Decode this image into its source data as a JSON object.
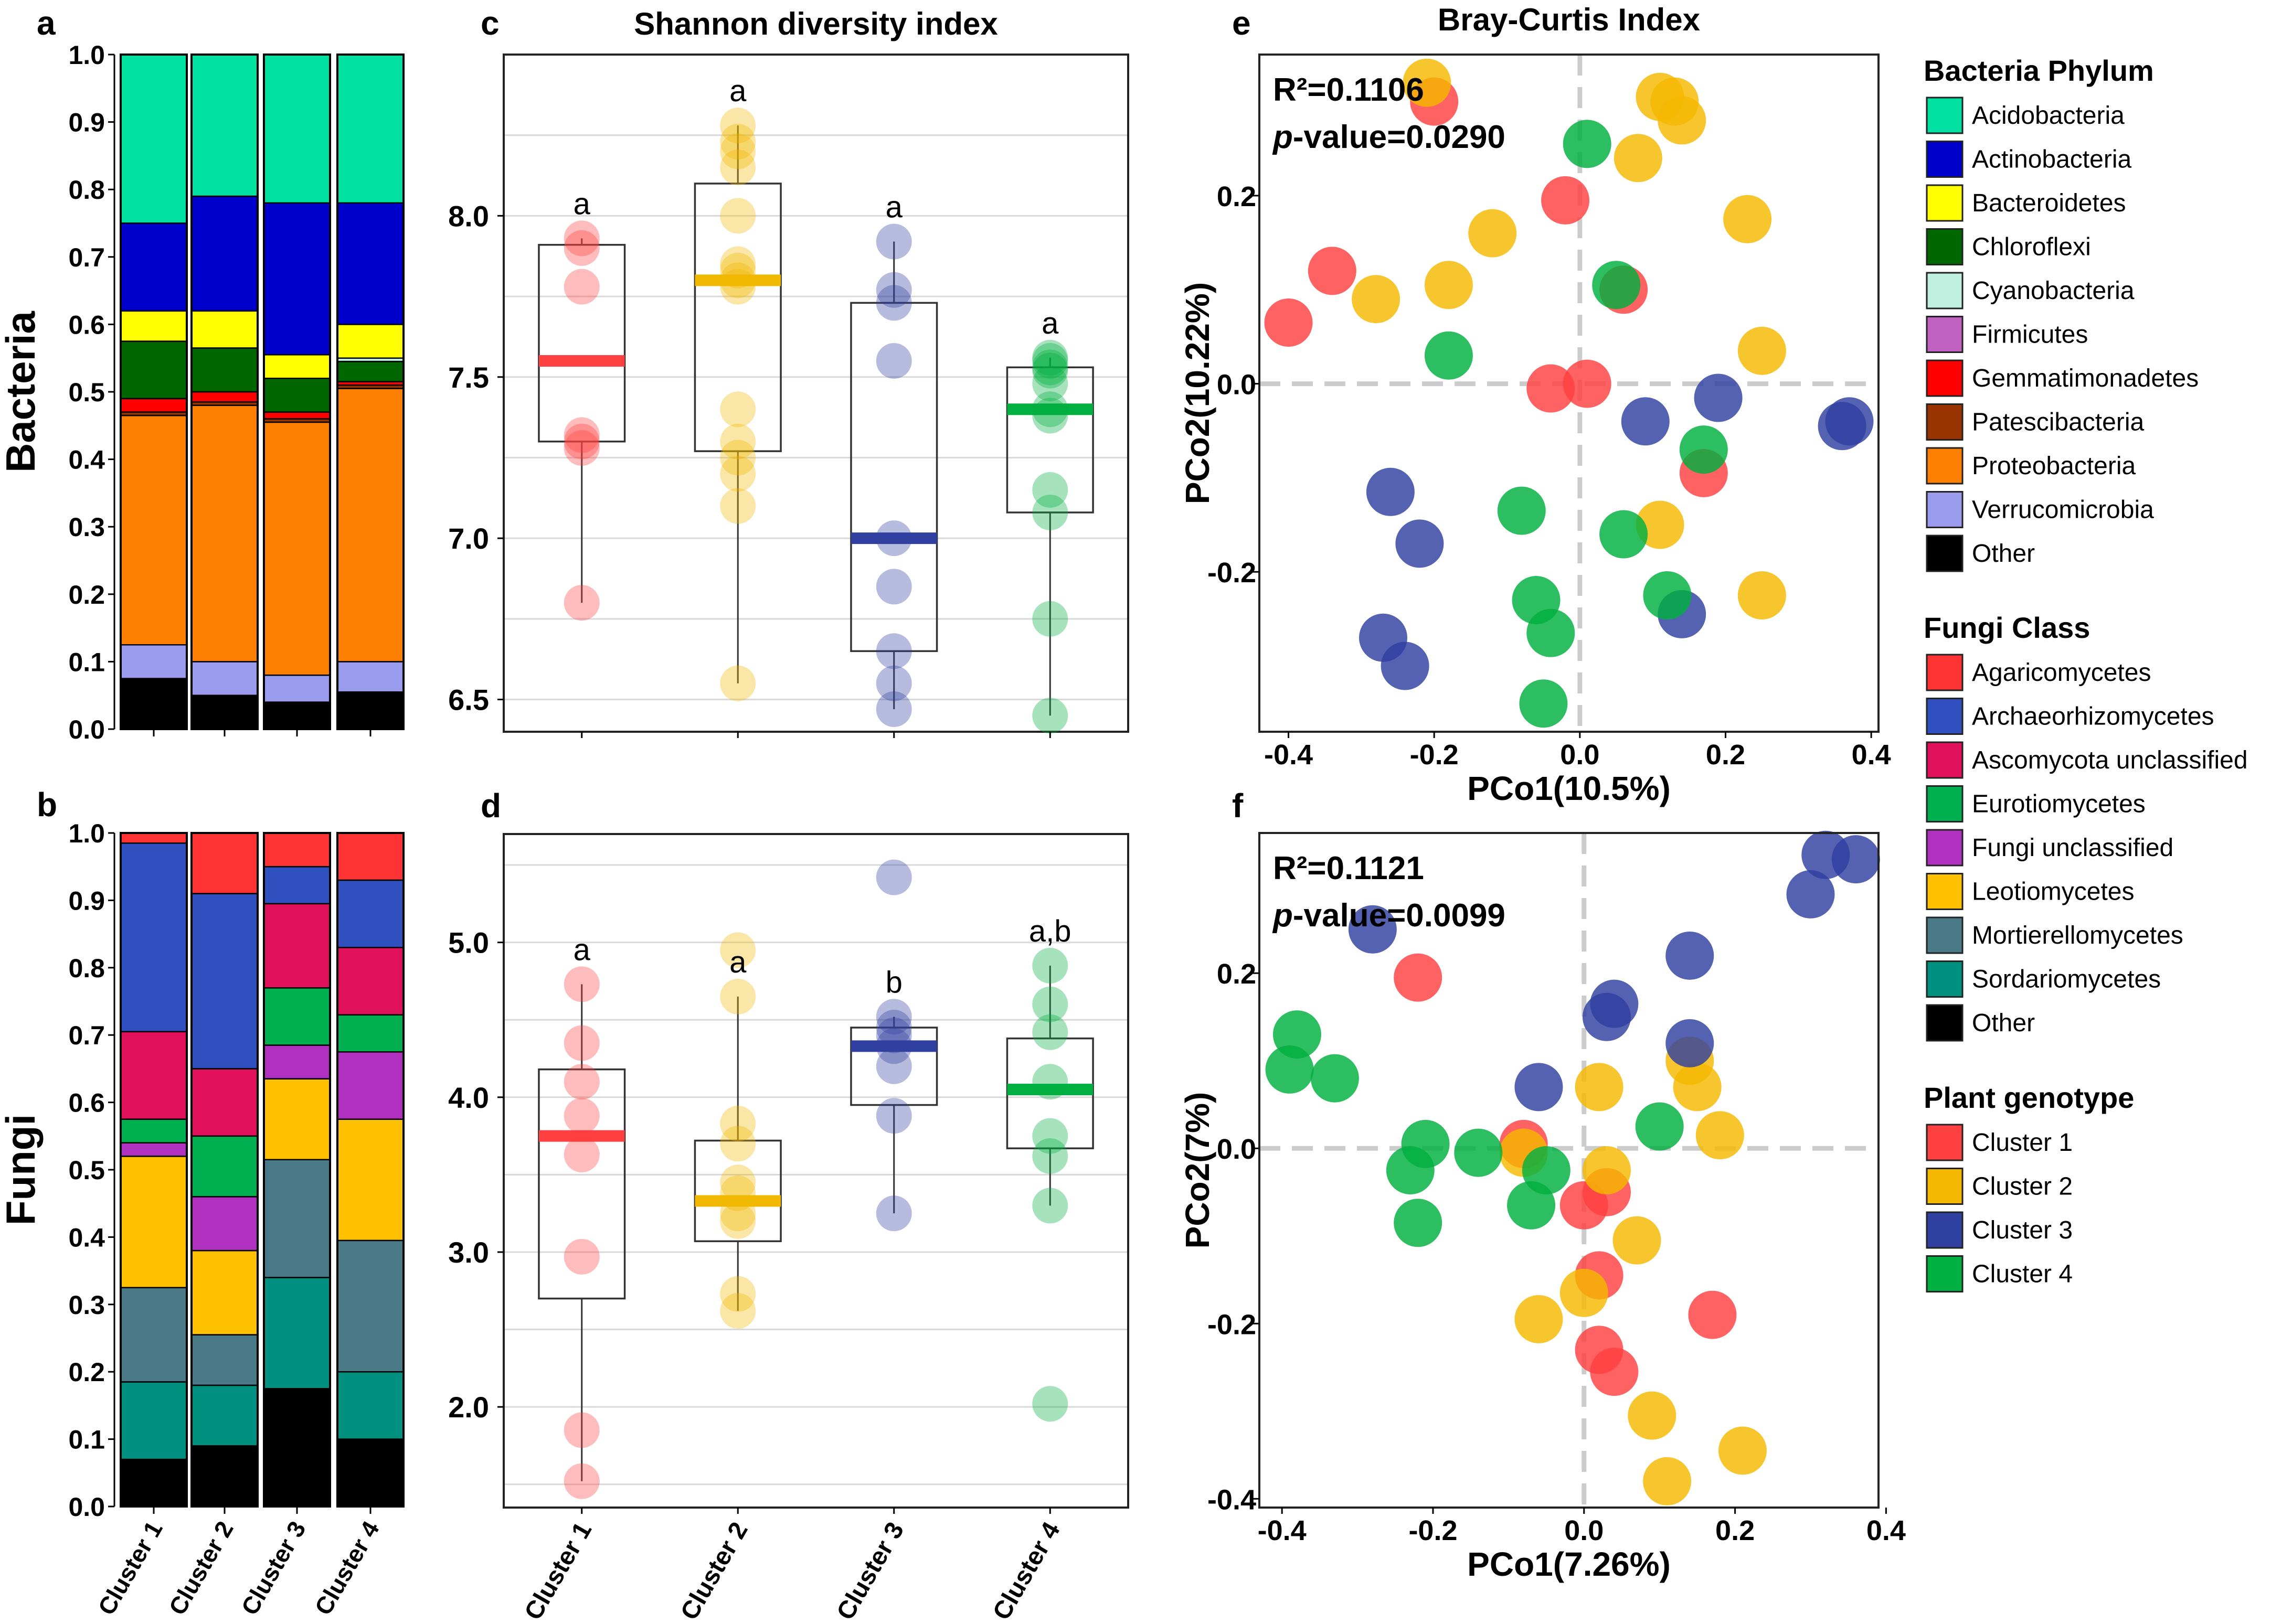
{
  "chart_data": [
    {
      "id": "a",
      "type": "bar",
      "stacked": true,
      "panel_label": "a",
      "ylabel": "Bacteria",
      "ylim": [
        0,
        1
      ],
      "ticks": [
        "0.0",
        "0.1",
        "0.2",
        "0.3",
        "0.4",
        "0.5",
        "0.6",
        "0.7",
        "0.8",
        "0.9",
        "1.0"
      ],
      "categories": [
        "Cluster 1",
        "Cluster 2",
        "Cluster 3",
        "Cluster 4"
      ],
      "series": [
        {
          "name": "Other",
          "color": "#000000",
          "values": [
            0.075,
            0.05,
            0.04,
            0.055
          ]
        },
        {
          "name": "Verrucomicrobia",
          "color": "#9B9BEE",
          "values": [
            0.05,
            0.05,
            0.04,
            0.045
          ]
        },
        {
          "name": "Proteobacteria",
          "color": "#FF8000",
          "values": [
            0.34,
            0.38,
            0.375,
            0.405
          ]
        },
        {
          "name": "Patescibacteria",
          "color": "#993300",
          "values": [
            0.005,
            0.005,
            0.005,
            0.005
          ]
        },
        {
          "name": "Gemmatimonadetes",
          "color": "#FF0000",
          "values": [
            0.02,
            0.015,
            0.01,
            0.005
          ]
        },
        {
          "name": "Chloroflexi",
          "color": "#006600",
          "values": [
            0.085,
            0.065,
            0.05,
            0.03
          ]
        },
        {
          "name": "Cyanobacteria",
          "color": "#BFF0E0",
          "values": [
            0,
            0,
            0,
            0.005
          ]
        },
        {
          "name": "Bacteroidetes",
          "color": "#FFFF00",
          "values": [
            0.045,
            0.055,
            0.035,
            0.05
          ]
        },
        {
          "name": "Actinobacteria",
          "color": "#0000CC",
          "values": [
            0.13,
            0.17,
            0.225,
            0.18
          ]
        },
        {
          "name": "Acidobacteria",
          "color": "#00E0A0",
          "values": [
            0.25,
            0.21,
            0.22,
            0.22
          ]
        }
      ]
    },
    {
      "id": "b",
      "type": "bar",
      "stacked": true,
      "panel_label": "b",
      "ylabel": "Fungi",
      "ylim": [
        0,
        1
      ],
      "ticks": [
        "0.0",
        "0.1",
        "0.2",
        "0.3",
        "0.4",
        "0.5",
        "0.6",
        "0.7",
        "0.8",
        "0.9",
        "1.0"
      ],
      "categories": [
        "Cluster 1",
        "Cluster 2",
        "Cluster 3",
        "Cluster 4"
      ],
      "series": [
        {
          "name": "Other",
          "color": "#000000",
          "values": [
            0.07,
            0.09,
            0.175,
            0.1
          ]
        },
        {
          "name": "Sordariomycetes",
          "color": "#009080",
          "values": [
            0.115,
            0.09,
            0.165,
            0.1
          ]
        },
        {
          "name": "Mortierellomycetes",
          "color": "#4A7A88",
          "values": [
            0.14,
            0.075,
            0.175,
            0.195
          ]
        },
        {
          "name": "Leotiomycetes",
          "color": "#FFC000",
          "values": [
            0.195,
            0.125,
            0.12,
            0.18
          ]
        },
        {
          "name": "Fungi unclassified",
          "color": "#B030C0",
          "values": [
            0.02,
            0.08,
            0.05,
            0.1
          ]
        },
        {
          "name": "Eurotiomycetes",
          "color": "#00B050",
          "values": [
            0.035,
            0.09,
            0.085,
            0.055
          ]
        },
        {
          "name": "Ascomycota unclassified",
          "color": "#E0105A",
          "values": [
            0.13,
            0.1,
            0.125,
            0.1
          ]
        },
        {
          "name": "Archaeorhizomycetes",
          "color": "#3050C0",
          "values": [
            0.28,
            0.26,
            0.055,
            0.1
          ]
        },
        {
          "name": "Agaricomycetes",
          "color": "#FF3333",
          "values": [
            0.015,
            0.09,
            0.05,
            0.07
          ]
        }
      ]
    },
    {
      "id": "c",
      "type": "box",
      "panel_label": "c",
      "title": "Shannon diversity index",
      "ylim": [
        6.4,
        8.5
      ],
      "ticks": [
        "6.5",
        "7.0",
        "7.5",
        "8.0"
      ],
      "categories": [
        "Cluster 1",
        "Cluster 2",
        "Cluster 3",
        "Cluster 4"
      ],
      "colors": [
        "#FF4040",
        "#F0B800",
        "#3040A0",
        "#00B040"
      ],
      "letters": [
        "a",
        "a",
        "a",
        "a"
      ],
      "median": [
        7.55,
        7.8,
        7.0,
        7.4
      ],
      "q1": [
        7.3,
        7.27,
        6.65,
        7.08
      ],
      "q3": [
        7.91,
        8.1,
        7.73,
        7.53
      ],
      "whisker_low": [
        6.8,
        6.55,
        6.47,
        6.45
      ],
      "whisker_high": [
        7.93,
        8.28,
        7.92,
        7.56
      ],
      "points": [
        [
          7.93,
          7.9,
          7.78,
          7.32,
          7.3,
          7.28,
          6.8
        ],
        [
          8.28,
          8.23,
          8.2,
          8.15,
          8.0,
          7.85,
          7.83,
          7.8,
          7.78,
          7.4,
          7.3,
          7.25,
          7.2,
          7.1,
          6.55
        ],
        [
          7.92,
          7.77,
          7.73,
          7.55,
          7.0,
          6.85,
          6.65,
          6.55,
          6.47
        ],
        [
          7.56,
          7.55,
          7.53,
          7.52,
          7.48,
          7.4,
          7.38,
          7.15,
          7.08,
          6.75,
          6.45
        ]
      ]
    },
    {
      "id": "d",
      "type": "box",
      "panel_label": "d",
      "ylim": [
        1.35,
        5.7
      ],
      "ticks": [
        "2.0",
        "3.0",
        "4.0",
        "5.0"
      ],
      "categories": [
        "Cluster 1",
        "Cluster 2",
        "Cluster 3",
        "Cluster 4"
      ],
      "colors": [
        "#FF4040",
        "#F0B800",
        "#3040A0",
        "#00B040"
      ],
      "letters": [
        "a",
        "a",
        "b",
        "a,b"
      ],
      "median": [
        3.75,
        3.33,
        4.33,
        4.05
      ],
      "q1": [
        2.7,
        3.07,
        3.95,
        3.67
      ],
      "q3": [
        4.18,
        3.72,
        4.45,
        4.38
      ],
      "whisker_low": [
        1.52,
        2.62,
        3.25,
        3.3
      ],
      "whisker_high": [
        4.73,
        4.65,
        4.52,
        4.85
      ],
      "points": [
        [
          4.73,
          4.35,
          4.1,
          3.88,
          3.63,
          2.97,
          1.85,
          1.52
        ],
        [
          4.95,
          4.65,
          3.83,
          3.7,
          3.45,
          3.38,
          3.25,
          3.2,
          2.73,
          2.62
        ],
        [
          5.42,
          4.52,
          4.45,
          4.4,
          4.33,
          4.2,
          3.88,
          3.25
        ],
        [
          4.85,
          4.6,
          4.42,
          4.1,
          3.75,
          3.62,
          3.3,
          2.02
        ]
      ]
    },
    {
      "id": "e",
      "type": "scatter",
      "panel_label": "e",
      "title": "Bray-Curtis Index",
      "xlabel": "PCo1(10.5%)",
      "ylabel": "PCo2(10.22%)",
      "xlim": [
        -0.44,
        0.41
      ],
      "ylim": [
        -0.37,
        0.35
      ],
      "xticks": [
        "-0.4",
        "-0.2",
        "0.0",
        "0.2",
        "0.4"
      ],
      "yticks": [
        "-0.2",
        "0.0",
        "0.2"
      ],
      "stat_r2": "R²=0.1106",
      "stat_p_label": "p",
      "stat_p_value": "-value=0.0290",
      "series": [
        {
          "name": "Cluster 1",
          "color": "#FF4040",
          "points": [
            [
              -0.2,
              0.3
            ],
            [
              -0.4,
              0.065
            ],
            [
              -0.34,
              0.12
            ],
            [
              -0.02,
              0.195
            ],
            [
              0.06,
              0.1
            ],
            [
              -0.04,
              -0.005
            ],
            [
              0.01,
              0.0
            ],
            [
              0.17,
              -0.095
            ]
          ]
        },
        {
          "name": "Cluster 2",
          "color": "#F5B800",
          "points": [
            [
              -0.21,
              0.32
            ],
            [
              0.11,
              0.305
            ],
            [
              0.13,
              0.3
            ],
            [
              0.14,
              0.28
            ],
            [
              0.08,
              0.24
            ],
            [
              0.23,
              0.175
            ],
            [
              -0.12,
              0.16
            ],
            [
              -0.18,
              0.105
            ],
            [
              -0.28,
              0.09
            ],
            [
              0.25,
              0.035
            ],
            [
              0.11,
              -0.15
            ],
            [
              0.25,
              -0.225
            ]
          ]
        },
        {
          "name": "Cluster 3",
          "color": "#3040A0",
          "points": [
            [
              -0.26,
              -0.115
            ],
            [
              -0.22,
              -0.17
            ],
            [
              -0.27,
              -0.27
            ],
            [
              -0.24,
              -0.3
            ],
            [
              0.09,
              -0.04
            ],
            [
              0.19,
              -0.015
            ],
            [
              0.36,
              -0.045
            ],
            [
              0.37,
              -0.04
            ],
            [
              0.14,
              -0.245
            ]
          ]
        },
        {
          "name": "Cluster 4",
          "color": "#00B040",
          "points": [
            [
              0.01,
              0.255
            ],
            [
              0.05,
              0.105
            ],
            [
              -0.18,
              0.03
            ],
            [
              0.17,
              -0.07
            ],
            [
              -0.08,
              -0.135
            ],
            [
              0.06,
              -0.16
            ],
            [
              -0.06,
              -0.23
            ],
            [
              0.12,
              -0.225
            ],
            [
              -0.04,
              -0.265
            ],
            [
              -0.05,
              -0.34
            ]
          ]
        }
      ]
    },
    {
      "id": "f",
      "type": "scatter",
      "panel_label": "f",
      "xlabel": "PCo1(7.26%)",
      "ylabel": "PCo2(7%)",
      "xlim": [
        -0.43,
        0.39
      ],
      "ylim": [
        -0.41,
        0.36
      ],
      "xticks": [
        "-0.4",
        "-0.2",
        "0.0",
        "0.2",
        "0.4"
      ],
      "yticks": [
        "-0.4",
        "-0.2",
        "0.0",
        "0.2"
      ],
      "stat_r2": "R²=0.1121",
      "stat_p_label": "p",
      "stat_p_value": "-value=0.0099",
      "series": [
        {
          "name": "Cluster 1",
          "color": "#FF4040",
          "points": [
            [
              -0.22,
              0.195
            ],
            [
              -0.08,
              0.005
            ],
            [
              0.0,
              -0.065
            ],
            [
              0.03,
              -0.05
            ],
            [
              0.02,
              -0.145
            ],
            [
              0.17,
              -0.19
            ],
            [
              0.02,
              -0.23
            ],
            [
              0.04,
              -0.255
            ]
          ]
        },
        {
          "name": "Cluster 2",
          "color": "#F5B800",
          "points": [
            [
              -0.08,
              -0.005
            ],
            [
              0.02,
              0.07
            ],
            [
              0.03,
              -0.025
            ],
            [
              0.14,
              0.1
            ],
            [
              0.15,
              0.07
            ],
            [
              0.18,
              0.015
            ],
            [
              0.07,
              -0.105
            ],
            [
              0.0,
              -0.165
            ],
            [
              -0.06,
              -0.195
            ],
            [
              0.09,
              -0.305
            ],
            [
              0.21,
              -0.345
            ],
            [
              0.11,
              -0.38
            ]
          ]
        },
        {
          "name": "Cluster 3",
          "color": "#3040A0",
          "points": [
            [
              -0.28,
              0.25
            ],
            [
              0.32,
              0.335
            ],
            [
              0.36,
              0.33
            ],
            [
              0.3,
              0.29
            ],
            [
              0.14,
              0.22
            ],
            [
              0.04,
              0.165
            ],
            [
              0.03,
              0.15
            ],
            [
              0.14,
              0.12
            ],
            [
              -0.06,
              0.07
            ]
          ]
        },
        {
          "name": "Cluster 4",
          "color": "#00B040",
          "points": [
            [
              -0.38,
              0.13
            ],
            [
              -0.39,
              0.09
            ],
            [
              -0.33,
              0.08
            ],
            [
              -0.21,
              0.005
            ],
            [
              -0.14,
              -0.005
            ],
            [
              -0.23,
              -0.025
            ],
            [
              -0.05,
              -0.025
            ],
            [
              -0.07,
              -0.065
            ],
            [
              -0.22,
              -0.085
            ],
            [
              0.1,
              0.025
            ]
          ]
        }
      ]
    }
  ],
  "legends": [
    {
      "title": "Bacteria Phylum",
      "entries": [
        {
          "label": "Acidobacteria",
          "color": "#00E0A0"
        },
        {
          "label": "Actinobacteria",
          "color": "#0000CC"
        },
        {
          "label": "Bacteroidetes",
          "color": "#FFFF00"
        },
        {
          "label": "Chloroflexi",
          "color": "#006600"
        },
        {
          "label": "Cyanobacteria",
          "color": "#BFF0E0"
        },
        {
          "label": "Firmicutes",
          "color": "#C060C0"
        },
        {
          "label": "Gemmatimonadetes",
          "color": "#FF0000"
        },
        {
          "label": "Patescibacteria",
          "color": "#993300"
        },
        {
          "label": "Proteobacteria",
          "color": "#FF8000"
        },
        {
          "label": "Verrucomicrobia",
          "color": "#9B9BEE"
        },
        {
          "label": "Other",
          "color": "#000000"
        }
      ]
    },
    {
      "title": "Fungi Class",
      "entries": [
        {
          "label": "Agaricomycetes",
          "color": "#FF3333"
        },
        {
          "label": "Archaeorhizomycetes",
          "color": "#3050C0"
        },
        {
          "label": "Ascomycota unclassified",
          "color": "#E0105A"
        },
        {
          "label": "Eurotiomycetes",
          "color": "#00B050"
        },
        {
          "label": "Fungi unclassified",
          "color": "#B030C0"
        },
        {
          "label": "Leotiomycetes",
          "color": "#FFC000"
        },
        {
          "label": "Mortierellomycetes",
          "color": "#4A7A88"
        },
        {
          "label": "Sordariomycetes",
          "color": "#009080"
        },
        {
          "label": "Other",
          "color": "#000000"
        }
      ]
    },
    {
      "title": "Plant genotype",
      "entries": [
        {
          "label": "Cluster 1",
          "color": "#FF4040"
        },
        {
          "label": "Cluster 2",
          "color": "#F5B800"
        },
        {
          "label": "Cluster 3",
          "color": "#3040A0"
        },
        {
          "label": "Cluster 4",
          "color": "#00B040"
        }
      ]
    }
  ]
}
